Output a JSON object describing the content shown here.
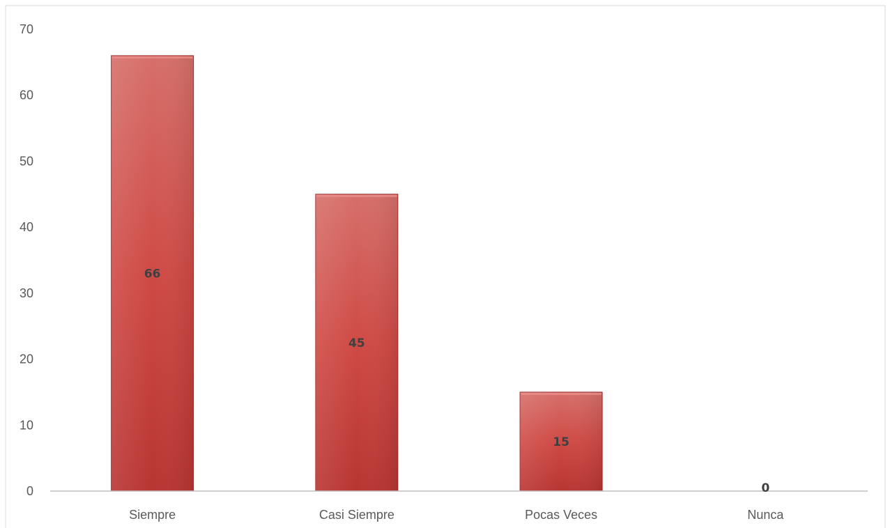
{
  "chart_data": {
    "type": "bar",
    "categories": [
      "Siempre",
      "Casi Siempre",
      "Pocas Veces",
      "Nunca"
    ],
    "values": [
      66,
      45,
      15,
      0
    ],
    "data_labels": [
      "66",
      "45",
      "15",
      "0"
    ],
    "title": "",
    "xlabel": "",
    "ylabel": "",
    "ylim": [
      0,
      70
    ],
    "yticks": [
      0,
      10,
      20,
      30,
      40,
      50,
      60,
      70
    ],
    "ytick_labels": [
      "0",
      "10",
      "20",
      "30",
      "40",
      "50",
      "60",
      "70"
    ],
    "grid": false,
    "legend": "none",
    "colors": {
      "bar_top": "#d66f6a",
      "bar_mid": "#cf4a45",
      "bar_bottom": "#b83532",
      "bar_edge": "#9e2a27",
      "axis": "#bfbfbf",
      "frame": "#d9d9d9"
    }
  }
}
